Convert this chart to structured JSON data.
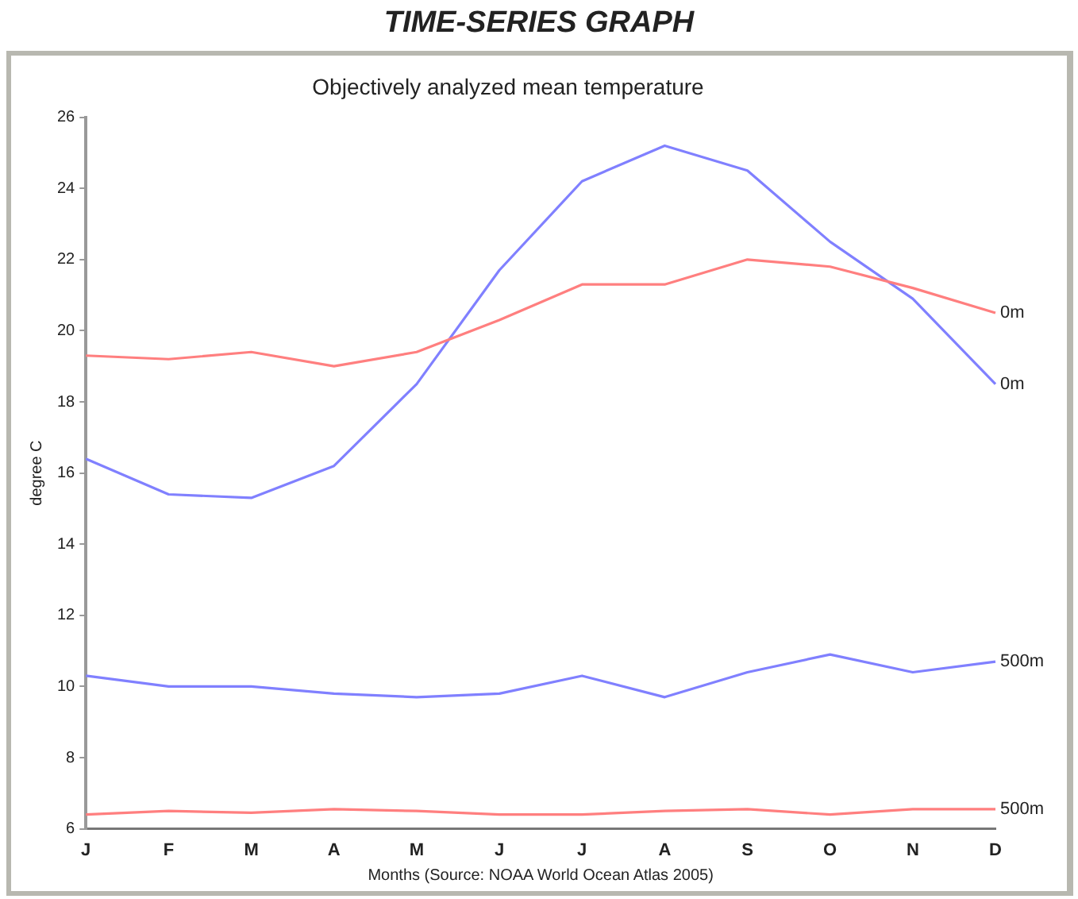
{
  "chart_data": {
    "type": "line",
    "title": "TIME-SERIES GRAPH",
    "subtitle": "Objectively analyzed mean temperature",
    "xlabel": "Months (Source: NOAA World Ocean Atlas 2005)",
    "ylabel": "degree C",
    "categories": [
      "J",
      "F",
      "M",
      "A",
      "M",
      "J",
      "J",
      "A",
      "S",
      "O",
      "N",
      "D"
    ],
    "series": [
      {
        "name": "0m",
        "color": "#ff7f7f",
        "values": [
          19.3,
          19.2,
          19.4,
          19.0,
          19.4,
          20.3,
          21.3,
          21.3,
          22.0,
          21.8,
          21.2,
          20.5
        ]
      },
      {
        "name": "0m",
        "color": "#8080ff",
        "values": [
          16.4,
          15.4,
          15.3,
          16.2,
          18.5,
          21.7,
          24.2,
          25.2,
          24.5,
          22.5,
          20.9,
          18.5
        ]
      },
      {
        "name": "500m",
        "color": "#8080ff",
        "values": [
          10.3,
          10.0,
          10.0,
          9.8,
          9.7,
          9.8,
          10.3,
          9.7,
          10.4,
          10.9,
          10.4,
          10.7
        ]
      },
      {
        "name": "500m",
        "color": "#ff7f7f",
        "values": [
          6.4,
          6.5,
          6.45,
          6.55,
          6.5,
          6.4,
          6.4,
          6.5,
          6.55,
          6.4,
          6.55,
          6.55
        ]
      }
    ],
    "ylim": [
      6,
      26
    ],
    "yticks": [
      6,
      8,
      10,
      12,
      14,
      16,
      18,
      20,
      22,
      24,
      26
    ],
    "grid": false,
    "legend": false,
    "marker": "none",
    "line_style": "solid"
  }
}
